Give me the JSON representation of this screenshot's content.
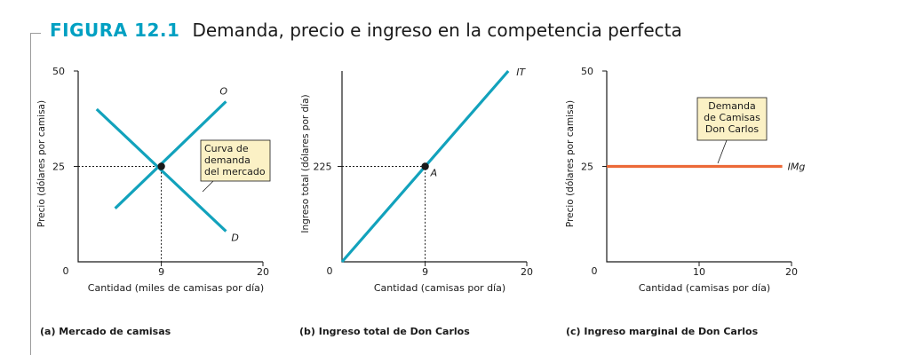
{
  "figure": {
    "number": "FIGURA 12.1",
    "title": "Demanda, precio e ingreso en la competencia perfecta"
  },
  "colors": {
    "accent": "#00a0c2",
    "curve_blue": "#12a2bc",
    "curve_orange": "#ec6a38",
    "callout_fill": "#fbf1c5"
  },
  "chart_data": [
    {
      "type": "line",
      "caption": "(a) Mercado de camisas",
      "xlabel": "Cantidad (miles de camisas por día)",
      "ylabel": "Precio (dólares por camisa)",
      "origin_label": "0",
      "xlim": [
        0,
        20
      ],
      "ylim": [
        0,
        50
      ],
      "x_ticks": [
        9,
        20
      ],
      "x_tick_labels": [
        "9",
        "20"
      ],
      "y_ticks": [
        25,
        50
      ],
      "y_tick_labels": [
        "25",
        "50"
      ],
      "series": [
        {
          "name": "O",
          "points": [
            [
              4,
              14
            ],
            [
              16,
              42
            ]
          ]
        },
        {
          "name": "D",
          "points": [
            [
              2,
              40
            ],
            [
              16,
              8
            ]
          ]
        }
      ],
      "equilibrium": {
        "x": 9,
        "y": 25
      },
      "annotation": "Curva de demanda del mercado",
      "annotation_lines": [
        "Curva de",
        "demanda",
        "del mercado"
      ]
    },
    {
      "type": "line",
      "caption": "(b) Ingreso total de Don Carlos",
      "xlabel": "Cantidad (camisas por día)",
      "ylabel": "Ingreso total (dólares por día)",
      "origin_label": "0",
      "xlim": [
        0,
        20
      ],
      "ylim": [
        0,
        450
      ],
      "x_ticks": [
        9,
        20
      ],
      "x_tick_labels": [
        "9",
        "20"
      ],
      "y_ticks": [
        225
      ],
      "y_tick_labels": [
        "225"
      ],
      "series": [
        {
          "name": "IT",
          "points": [
            [
              0,
              0
            ],
            [
              18,
              450
            ]
          ]
        }
      ],
      "point": {
        "label": "A",
        "x": 9,
        "y": 225
      }
    },
    {
      "type": "line",
      "caption": "(c) Ingreso marginal de Don Carlos",
      "xlabel": "Cantidad (camisas por día)",
      "ylabel": "Precio (dólares por camisa)",
      "origin_label": "0",
      "xlim": [
        0,
        20
      ],
      "ylim": [
        0,
        50
      ],
      "x_ticks": [
        10,
        20
      ],
      "x_tick_labels": [
        "10",
        "20"
      ],
      "y_ticks": [
        25,
        50
      ],
      "y_tick_labels": [
        "25",
        "50"
      ],
      "series": [
        {
          "name": "IMg",
          "points": [
            [
              0,
              25
            ],
            [
              19,
              25
            ]
          ]
        }
      ],
      "annotation": "Demanda de Camisas Don Carlos",
      "annotation_lines": [
        "Demanda",
        "de Camisas",
        "Don Carlos"
      ]
    }
  ]
}
